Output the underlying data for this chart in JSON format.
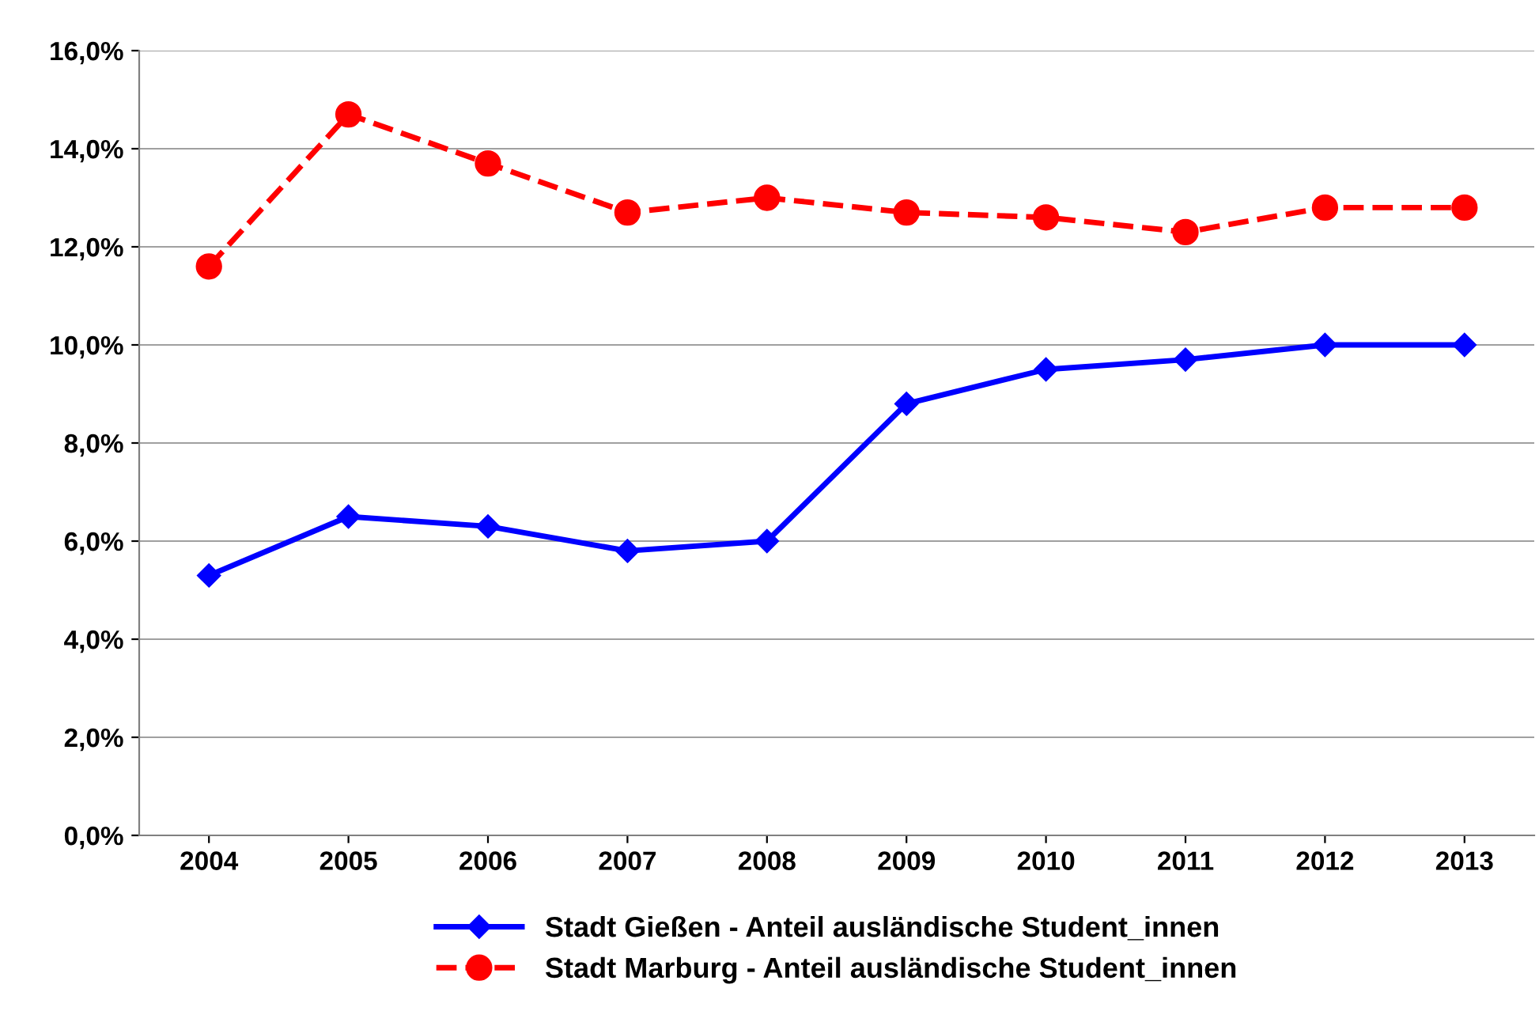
{
  "chart_data": {
    "type": "line",
    "categories": [
      "2004",
      "2005",
      "2006",
      "2007",
      "2008",
      "2009",
      "2010",
      "2011",
      "2012",
      "2013"
    ],
    "series": [
      {
        "name": "Stadt Gießen - Anteil ausländische Student_innen",
        "color": "#0000ff",
        "marker": "diamond",
        "line_style": "solid",
        "values": [
          5.3,
          6.5,
          6.3,
          5.8,
          6.0,
          8.8,
          9.5,
          9.7,
          10.0,
          10.0
        ]
      },
      {
        "name": "Stadt Marburg - Anteil ausländische Student_innen",
        "color": "#ff0000",
        "marker": "circle",
        "line_style": "dashed",
        "values": [
          11.6,
          14.7,
          13.7,
          12.7,
          13.0,
          12.7,
          12.6,
          12.3,
          12.8,
          12.8
        ]
      }
    ],
    "ylim": [
      0,
      16
    ],
    "yticks": [
      {
        "value": 0,
        "label": "0,0%"
      },
      {
        "value": 2,
        "label": "2,0%"
      },
      {
        "value": 4,
        "label": "4,0%"
      },
      {
        "value": 6,
        "label": "6,0%"
      },
      {
        "value": 8,
        "label": "8,0%"
      },
      {
        "value": 10,
        "label": "10,0%"
      },
      {
        "value": 12,
        "label": "12,0%"
      },
      {
        "value": 14,
        "label": "14,0%"
      },
      {
        "value": 16,
        "label": "16,0%"
      }
    ],
    "grid": "y",
    "legend": "bottom"
  }
}
